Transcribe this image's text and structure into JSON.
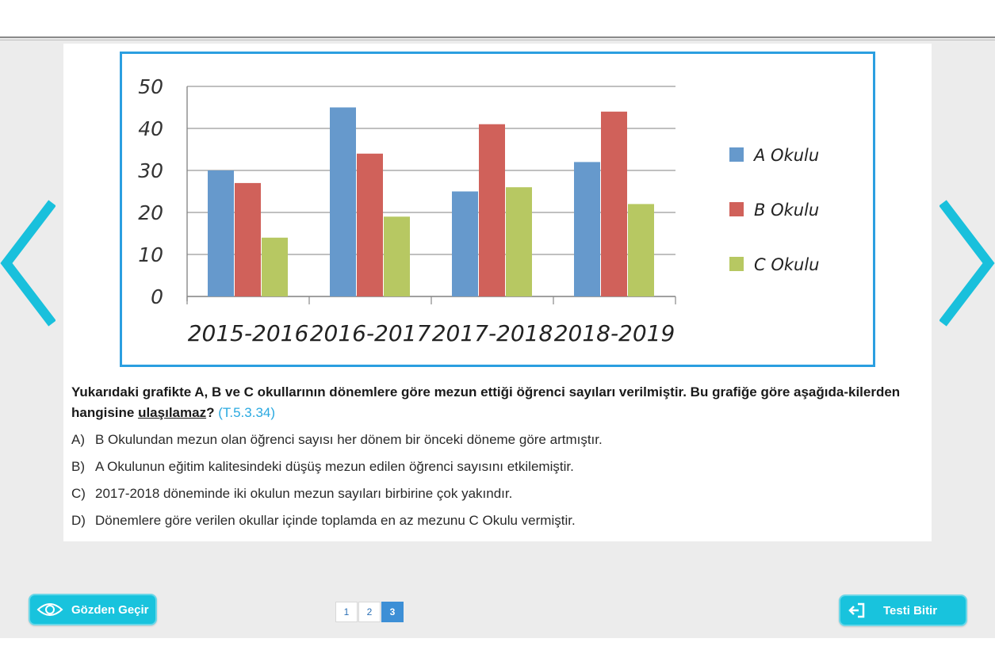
{
  "chart_data": {
    "type": "bar",
    "categories": [
      "2015-2016",
      "2016-2017",
      "2017-2018",
      "2018-2019"
    ],
    "series": [
      {
        "name": "A Okulu",
        "color": "#6699cc",
        "values": [
          30,
          45,
          25,
          32
        ]
      },
      {
        "name": "B Okulu",
        "color": "#d0615a",
        "values": [
          27,
          34,
          41,
          44
        ]
      },
      {
        "name": "C Okulu",
        "color": "#b7c862",
        "values": [
          14,
          19,
          26,
          22
        ]
      }
    ],
    "ylim": [
      0,
      50
    ],
    "yticks": [
      "0",
      "10",
      "20",
      "30",
      "40",
      "50"
    ],
    "grid": true,
    "legend_position": "right"
  },
  "question": {
    "text_part1": "Yukarıdaki grafikte A, B ve C okullarının dönemlere göre mezun ettiği öğrenci sayıları verilmiştir. Bu grafiğe göre aşağıda-kilerden hangisine ",
    "underlined": "ulaşılamaz",
    "qmark": "?",
    "code": "(T.5.3.34)"
  },
  "options": [
    {
      "letter": "A)",
      "text": "B Okulundan mezun olan öğrenci sayısı her dönem bir önceki döneme göre artmıştır."
    },
    {
      "letter": "B)",
      "text": "A Okulunun eğitim kalitesindeki düşüş mezun edilen öğrenci sayısını etkilemiştir."
    },
    {
      "letter": "C)",
      "text": "2017-2018 döneminde iki okulun mezun sayıları birbirine çok yakındır."
    },
    {
      "letter": "D)",
      "text": "Dönemlere göre verilen okullar içinde toplamda en az mezunu C Okulu vermiştir."
    }
  ],
  "footer": {
    "review_label": "Gözden Geçir",
    "finish_label": "Testi Bitir",
    "pages": [
      "1",
      "2",
      "3"
    ],
    "active_page": "3"
  },
  "colors": {
    "accent": "#18c3dd",
    "frame": "#2b9fe0",
    "arrow": "#19c0dc"
  },
  "icons": {
    "review": "eye-icon",
    "finish": "exit-icon",
    "prev": "chevron-left-icon",
    "next": "chevron-right-icon"
  }
}
